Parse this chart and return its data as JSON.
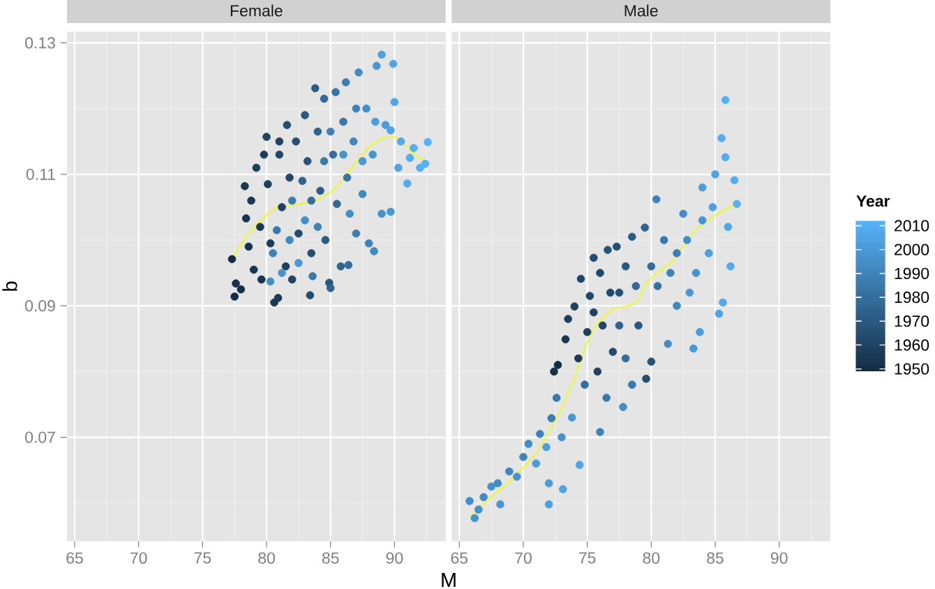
{
  "chart_data": [
    {
      "type": "scatter",
      "title": "Female",
      "xlabel": "M",
      "ylabel": "b",
      "xlim": [
        64.4,
        94.0
      ],
      "ylim": [
        0.0542,
        0.1317
      ],
      "xticks": [
        65,
        70,
        75,
        80,
        85,
        90
      ],
      "yticks": [
        0.07,
        0.09,
        0.11,
        0.13
      ],
      "grid": true,
      "series": [
        {
          "marker": "circle",
          "x": [
            77.3,
            77.5,
            77.6,
            78.0,
            78.3,
            78.4,
            78.6,
            78.8,
            79.0,
            79.2,
            79.5,
            79.6,
            80.0,
            80.1,
            80.3,
            80.6,
            80.9,
            81.0,
            81.2,
            81.5,
            81.6,
            81.8,
            82.0,
            82.3,
            82.5,
            83.0,
            83.8,
            83.2,
            83.5,
            83.4,
            84.0,
            84.2,
            84.5,
            84.6,
            84.9,
            85.0,
            85.2,
            85.4,
            85.5,
            85.8,
            86.0,
            86.2,
            86.4,
            86.3,
            86.8,
            87.0,
            87.2,
            87.5,
            87.8,
            88.0,
            88.4,
            88.3,
            88.6,
            89.0,
            89.0,
            89.3,
            89.7,
            89.7,
            89.9,
            90.0,
            90.3,
            90.5,
            91.0,
            91.2,
            91.5,
            92.0,
            92.4,
            92.6,
            80.3,
            80.5,
            81.2,
            81.8,
            82.5,
            83.0,
            83.6,
            84.0,
            82.0,
            80.8,
            82.8,
            85.0,
            86.5,
            87.5,
            83.5,
            84.5,
            86.0,
            88.5,
            87.0,
            79.8,
            81.0
          ],
          "values": [
            0.0971,
            0.0914,
            0.0934,
            0.0925,
            0.1082,
            0.1033,
            0.099,
            0.106,
            0.0955,
            0.111,
            0.102,
            0.094,
            0.1157,
            0.1085,
            0.0995,
            0.0905,
            0.0912,
            0.113,
            0.105,
            0.096,
            0.1175,
            0.1095,
            0.094,
            0.115,
            0.101,
            0.119,
            0.1231,
            0.112,
            0.098,
            0.0916,
            0.1165,
            0.1075,
            0.1215,
            0.1,
            0.0935,
            0.0927,
            0.113,
            0.1225,
            0.1055,
            0.096,
            0.118,
            0.124,
            0.0962,
            0.1095,
            0.115,
            0.101,
            0.1255,
            0.107,
            0.12,
            0.0995,
            0.0983,
            0.113,
            0.1265,
            0.1282,
            0.104,
            0.1175,
            0.1043,
            0.1167,
            0.1268,
            0.121,
            0.111,
            0.115,
            0.1086,
            0.1125,
            0.114,
            0.111,
            0.1116,
            0.1149,
            0.0937,
            0.098,
            0.095,
            0.1,
            0.0965,
            0.103,
            0.0945,
            0.102,
            0.106,
            0.1015,
            0.109,
            0.1165,
            0.104,
            0.112,
            0.106,
            0.112,
            0.113,
            0.118,
            0.12,
            0.113,
            0.115
          ],
          "colors": [
            "#142D46",
            "#142D46",
            "#16314C",
            "#152F49",
            "#193854",
            "#17344E",
            "#16314C",
            "#1A3A57",
            "#183651",
            "#1D3E5D",
            "#193854",
            "#17344E",
            "#1F4262",
            "#1D3E5D",
            "#1C3C5A",
            "#193854",
            "#1A3A57",
            "#214768",
            "#1F4262",
            "#1E4060",
            "#244D71",
            "#22496B",
            "#204565",
            "#265176",
            "#234B6E",
            "#29587F",
            "#2B5C85",
            "#275379",
            "#254F74",
            "#234B6E",
            "#2F628D",
            "#2D5E88",
            "#326996",
            "#2B5C85",
            "#29587F",
            "#2F628D",
            "#346D9C",
            "#3773A4",
            "#326996",
            "#306490",
            "#3978AA",
            "#3C7EB2",
            "#346D9C",
            "#3875A7",
            "#4186BE",
            "#3C7EB2",
            "#438BC4",
            "#4186BE",
            "#458FC9",
            "#3F82B8",
            "#4289C1",
            "#4793CF",
            "#4997D5",
            "#4DA0E0",
            "#4691CC",
            "#4B9CDA",
            "#4997D5",
            "#4FA2E3",
            "#50A4E6",
            "#51A6E9",
            "#50A4E6",
            "#52A8EC",
            "#53ABEE",
            "#54ADF1",
            "#55AFF4",
            "#55AFF4",
            "#56B1F7",
            "#56B1F7",
            "#448DC6",
            "#3F82B8",
            "#4793CF",
            "#4289C1",
            "#4997D5",
            "#458FC9",
            "#3978AA",
            "#3F82B8",
            "#3B7CB0",
            "#3978AA",
            "#2F628D",
            "#3F82B8",
            "#448DC6",
            "#4997D5",
            "#346D9C",
            "#3978AA",
            "#4793CF",
            "#4C9EDD",
            "#3F82B8",
            "#1C3C5A",
            "#1F4262"
          ]
        },
        {
          "type": "line",
          "color": "#eef542",
          "x": [
            77.3,
            78.8,
            80.3,
            81.0,
            82.4,
            83.9,
            85.4,
            86.8,
            88.3,
            89.5,
            90.4,
            91.5,
            92.4
          ],
          "values": [
            0.0971,
            0.1015,
            0.1043,
            0.1052,
            0.1054,
            0.1061,
            0.1079,
            0.1114,
            0.1146,
            0.1157,
            0.1153,
            0.1132,
            0.112
          ]
        }
      ]
    },
    {
      "type": "scatter",
      "title": "Male",
      "xlim": [
        64.4,
        94.0
      ],
      "ylim": [
        0.0542,
        0.1317
      ],
      "xticks": [
        65,
        70,
        75,
        80,
        85,
        90
      ],
      "yticks": [
        0.07,
        0.09,
        0.11,
        0.13
      ],
      "tick_labels": "x",
      "grid": true,
      "clabel": "Year",
      "clim": [
        1949,
        2012
      ],
      "cticks": [
        1950,
        1960,
        1970,
        1980,
        1990,
        2000,
        2010
      ],
      "series": [
        {
          "marker": "circle",
          "x": [
            65.8,
            66.2,
            66.5,
            66.9,
            67.5,
            68.0,
            68.2,
            68.9,
            69.5,
            70.0,
            70.4,
            71.0,
            71.3,
            71.8,
            72.0,
            72.0,
            72.2,
            72.6,
            73.1,
            73.0,
            74.4,
            73.8,
            72.4,
            72.7,
            73.3,
            73.5,
            74.0,
            74.5,
            74.3,
            75.0,
            75.5,
            75.2,
            75.8,
            76.0,
            76.2,
            76.6,
            77.3,
            77.0,
            77.5,
            78.0,
            78.5,
            79.5,
            79.6,
            80.0,
            79.0,
            76.0,
            77.8,
            78.5,
            80.4,
            80.5,
            81.3,
            81.0,
            82.0,
            82.5,
            82.0,
            83.3,
            83.8,
            83.5,
            84.0,
            84.0,
            84.5,
            85.0,
            85.3,
            85.6,
            85.5,
            85.8,
            85.8,
            86.0,
            86.5,
            86.7,
            86.2,
            74.8,
            76.5,
            77.5,
            78.8,
            80.0,
            81.5,
            82.8,
            83.0,
            84.8,
            78.0,
            76.8,
            75.5
          ],
          "values": [
            0.0603,
            0.0577,
            0.059,
            0.0609,
            0.0625,
            0.063,
            0.0598,
            0.0648,
            0.064,
            0.067,
            0.069,
            0.066,
            0.0705,
            0.0685,
            0.0598,
            0.063,
            0.0729,
            0.076,
            0.0621,
            0.07,
            0.0658,
            0.073,
            0.08,
            0.081,
            0.0849,
            0.088,
            0.0899,
            0.0941,
            0.082,
            0.086,
            0.0973,
            0.0915,
            0.08,
            0.095,
            0.087,
            0.0985,
            0.099,
            0.083,
            0.092,
            0.096,
            0.1005,
            0.1019,
            0.0789,
            0.0815,
            0.087,
            0.0708,
            0.0746,
            0.078,
            0.1062,
            0.093,
            0.0842,
            0.1,
            0.098,
            0.104,
            0.09,
            0.0835,
            0.086,
            0.095,
            0.103,
            0.108,
            0.098,
            0.11,
            0.0888,
            0.0905,
            0.1155,
            0.1126,
            0.1213,
            0.102,
            0.1091,
            0.1055,
            0.096,
            0.078,
            0.076,
            0.087,
            0.093,
            0.096,
            0.095,
            0.1,
            0.092,
            0.105,
            0.082,
            0.092,
            0.089
          ],
          "cvalues": [
            1995,
            1998,
            1996,
            1993,
            1997,
            1994,
            2000,
            1992,
            1999,
            1991,
            1995,
            2001,
            1990,
            2003,
            2004,
            2002,
            1988,
            1985,
            2005,
            1998,
            2006,
            2000,
            1952,
            1950,
            1955,
            1958,
            1960,
            1962,
            1956,
            1958,
            1965,
            1963,
            1960,
            1962,
            1961,
            1968,
            1966,
            1964,
            1967,
            1970,
            1972,
            1975,
            1965,
            1968,
            1970,
            1990,
            1995,
            1985,
            1990,
            1982,
            1995,
            1985,
            1988,
            1995,
            1992,
            2000,
            2002,
            1998,
            1999,
            2002,
            2003,
            2005,
            2006,
            2008,
            2010,
            2009,
            2011,
            2007,
            2010,
            2012,
            2009,
            1980,
            1985,
            1975,
            1978,
            1980,
            1990,
            1995,
            2000,
            2004,
            1980,
            1963,
            1960
          ],
          "colors": [
            "#448DC6",
            "#4793CF",
            "#458FC9",
            "#4289C1",
            "#4691CC",
            "#438BC4",
            "#4997D5",
            "#4186BE",
            "#4895D2",
            "#4084BB",
            "#448DC6",
            "#4A9AD8",
            "#3F82B8",
            "#4C9EDD",
            "#4DA0E0",
            "#4B9CDA",
            "#3C7EB2",
            "#3978AA",
            "#4FA2E3",
            "#4793CF",
            "#50A4E6",
            "#4997D5",
            "#16314C",
            "#142D46",
            "#193854",
            "#1D3E5D",
            "#1F4262",
            "#214768",
            "#1A3A57",
            "#1D3E5D",
            "#244D71",
            "#22496B",
            "#1F4262",
            "#214768",
            "#204565",
            "#275379",
            "#254F74",
            "#234B6E",
            "#265176",
            "#29587F",
            "#2B5C85",
            "#2F628D",
            "#244D71",
            "#275379",
            "#29587F",
            "#3F82B8",
            "#448DC6",
            "#3978AA",
            "#3F82B8",
            "#3671A1",
            "#448DC6",
            "#3978AA",
            "#3C7EB2",
            "#448DC6",
            "#4186BE",
            "#4997D5",
            "#4B9CDA",
            "#4793CF",
            "#4895D2",
            "#4B9CDA",
            "#4C9EDD",
            "#4FA2E3",
            "#50A4E6",
            "#52A8EC",
            "#54ADF1",
            "#53ABEE",
            "#55AFF4",
            "#51A6E9",
            "#54ADF1",
            "#56B1F7",
            "#53ABEE",
            "#346D9C",
            "#3978AA",
            "#2F628D",
            "#326996",
            "#346D9C",
            "#3F82B8",
            "#448DC6",
            "#4997D5",
            "#4DA0E0",
            "#346D9C",
            "#22496B",
            "#1F4262"
          ]
        },
        {
          "type": "line",
          "color": "#eef542",
          "x": [
            65.8,
            69.3,
            71.1,
            72.6,
            73.9,
            74.8,
            75.7,
            77.0,
            78.1,
            79.0,
            79.7,
            81.7,
            83.3,
            84.9,
            86.5
          ],
          "values": [
            0.058,
            0.064,
            0.0679,
            0.0729,
            0.0785,
            0.0835,
            0.087,
            0.0895,
            0.0899,
            0.0909,
            0.0937,
            0.0969,
            0.1012,
            0.1036,
            0.1054
          ]
        }
      ]
    }
  ]
}
